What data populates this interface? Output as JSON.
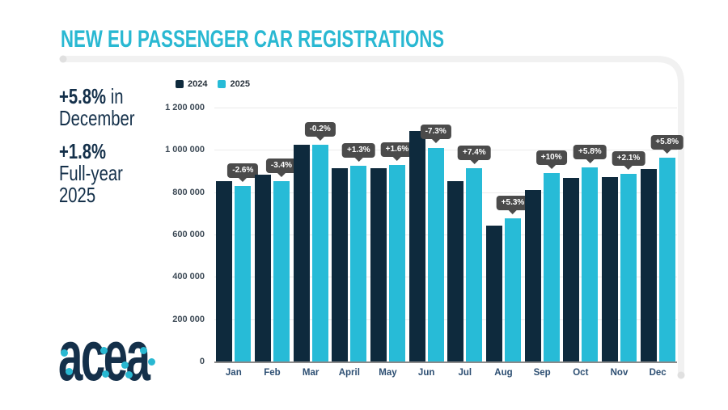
{
  "header": {
    "title": "NEW EU PASSENGER CAR REGISTRATIONS"
  },
  "stats": {
    "december": {
      "value": "+5.8%",
      "suffix": " in",
      "line2": "December"
    },
    "full_year": {
      "value": "+1.8%",
      "line2": "Full-year",
      "line3": "2025"
    }
  },
  "logo": {
    "text": "acea"
  },
  "colors": {
    "accent_cyan": "#29B8D2",
    "brand_navy": "#14304A",
    "bar_2024": "#0E2A3D",
    "bar_2025": "#27BBD7",
    "badge_bg": "#4B4B4B",
    "gridline": "#EBEBEB",
    "baseline": "#8A8A8A",
    "frame_line": "#F1F1F1"
  },
  "chart_data": {
    "type": "bar",
    "title": "NEW EU PASSENGER CAR REGISTRATIONS",
    "categories": [
      "Jan",
      "Feb",
      "Mar",
      "April",
      "May",
      "Jun",
      "Jul",
      "Aug",
      "Sep",
      "Oct",
      "Nov",
      "Dec"
    ],
    "series": [
      {
        "name": "2024",
        "color": "#0E2A3D",
        "values": [
          853000,
          884000,
          1025000,
          914000,
          912000,
          1090000,
          852000,
          644000,
          809000,
          866000,
          870000,
          911000
        ]
      },
      {
        "name": "2025",
        "color": "#27BBD7",
        "values": [
          831000,
          854000,
          1023000,
          926000,
          927000,
          1011000,
          915000,
          678000,
          890000,
          916000,
          888000,
          964000
        ]
      }
    ],
    "pct_labels": [
      "-2.6%",
      "-3.4%",
      "-0.2%",
      "+1.3%",
      "+1.6%",
      "-7.3%",
      "+7.4%",
      "+5.3%",
      "+10%",
      "+5.8%",
      "+2.1%",
      "+5.8%"
    ],
    "xlabel": "",
    "ylabel": "",
    "ylim": [
      0,
      1200000
    ],
    "yticks": [
      0,
      200000,
      400000,
      600000,
      800000,
      1000000,
      1200000
    ],
    "ytick_labels": [
      "0",
      "200 000",
      "400 000",
      "600 000",
      "800 000",
      "1 000 000",
      "1 200 000"
    ],
    "grid": true,
    "legend": {
      "position": "top-left",
      "entries": [
        "2024",
        "2025"
      ]
    }
  }
}
